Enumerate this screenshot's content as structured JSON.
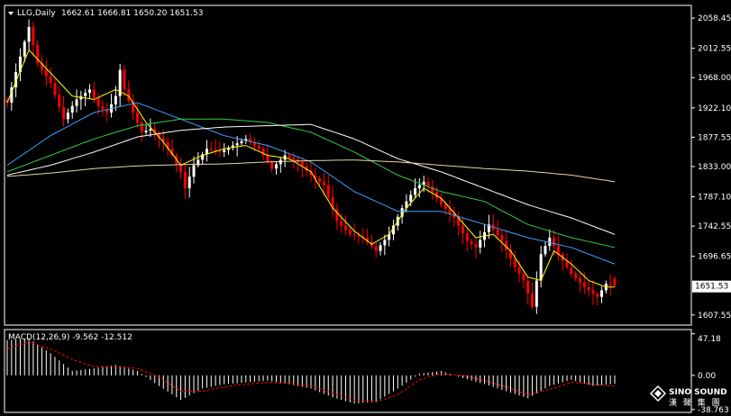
{
  "header": {
    "symbol": "LLG,Daily",
    "ohlc": "1662.61 1666.81 1650.20 1651.53"
  },
  "macd_header": "MACD(12,26,9) -9.562 -12.512",
  "current_price_label": "1651.53",
  "watermark": {
    "title": "SINO SOUND",
    "subtitle": "漢 聲 集 團"
  },
  "colors": {
    "background": "#000000",
    "axis": "#ffffff",
    "bull": "#ffffff",
    "bear": "#ff0000",
    "ma_fast": "#ffff00",
    "ma_mid": "#3aa0ff",
    "ma_slow": "#2ecc40",
    "ma_white": "#ffffff",
    "ma_tan": "#e8d8a0",
    "macd_hist": "#ffffff",
    "macd_signal": "#ff0000"
  },
  "chart_data": [
    {
      "type": "candlestick",
      "title": "LLG,Daily",
      "y_ticks": [
        2058.45,
        2012.55,
        1968.0,
        1922.1,
        1877.55,
        1833.0,
        1787.1,
        1742.55,
        1696.65,
        1651.53,
        1607.55
      ],
      "ylim": [
        1595,
        2075
      ],
      "last": {
        "open": 1662.61,
        "high": 1666.81,
        "low": 1650.2,
        "close": 1651.53
      },
      "close_path": [
        [
          0,
          1930
        ],
        [
          3,
          2000
        ],
        [
          5,
          2045
        ],
        [
          7,
          1990
        ],
        [
          10,
          1960
        ],
        [
          13,
          1905
        ],
        [
          16,
          1935
        ],
        [
          19,
          1950
        ],
        [
          21,
          1925
        ],
        [
          23,
          1915
        ],
        [
          25,
          1940
        ],
        [
          26,
          1980
        ],
        [
          27,
          1950
        ],
        [
          29,
          1915
        ],
        [
          31,
          1885
        ],
        [
          33,
          1890
        ],
        [
          36,
          1870
        ],
        [
          38,
          1850
        ],
        [
          40,
          1825
        ],
        [
          41,
          1800
        ],
        [
          43,
          1835
        ],
        [
          46,
          1860
        ],
        [
          49,
          1855
        ],
        [
          52,
          1865
        ],
        [
          55,
          1875
        ],
        [
          58,
          1860
        ],
        [
          61,
          1830
        ],
        [
          64,
          1850
        ],
        [
          67,
          1840
        ],
        [
          70,
          1820
        ],
        [
          73,
          1805
        ],
        [
          76,
          1750
        ],
        [
          79,
          1730
        ],
        [
          82,
          1725
        ],
        [
          85,
          1705
        ],
        [
          88,
          1730
        ],
        [
          91,
          1770
        ],
        [
          94,
          1800
        ],
        [
          96,
          1810
        ],
        [
          98,
          1795
        ],
        [
          100,
          1775
        ],
        [
          103,
          1755
        ],
        [
          106,
          1720
        ],
        [
          108,
          1710
        ],
        [
          111,
          1745
        ],
        [
          114,
          1720
        ],
        [
          117,
          1680
        ],
        [
          119,
          1660
        ],
        [
          121,
          1620
        ],
        [
          123,
          1700
        ],
        [
          125,
          1725
        ],
        [
          127,
          1700
        ],
        [
          130,
          1670
        ],
        [
          133,
          1650
        ],
        [
          136,
          1635
        ],
        [
          138,
          1655
        ],
        [
          140,
          1651.53
        ]
      ],
      "moving_averages": [
        {
          "color": "#ffff00",
          "values": [
            [
              0,
              1930
            ],
            [
              5,
              2010
            ],
            [
              10,
              1975
            ],
            [
              15,
              1940
            ],
            [
              20,
              1935
            ],
            [
              25,
              1950
            ],
            [
              28,
              1940
            ],
            [
              32,
              1900
            ],
            [
              36,
              1870
            ],
            [
              40,
              1835
            ],
            [
              45,
              1850
            ],
            [
              50,
              1860
            ],
            [
              55,
              1865
            ],
            [
              60,
              1850
            ],
            [
              65,
              1845
            ],
            [
              70,
              1825
            ],
            [
              75,
              1770
            ],
            [
              80,
              1735
            ],
            [
              84,
              1715
            ],
            [
              88,
              1730
            ],
            [
              92,
              1770
            ],
            [
              96,
              1800
            ],
            [
              100,
              1785
            ],
            [
              104,
              1755
            ],
            [
              108,
              1725
            ],
            [
              112,
              1730
            ],
            [
              116,
              1705
            ],
            [
              120,
              1665
            ],
            [
              123,
              1660
            ],
            [
              126,
              1705
            ],
            [
              130,
              1685
            ],
            [
              134,
              1660
            ],
            [
              138,
              1650
            ],
            [
              140,
              1650
            ]
          ]
        },
        {
          "color": "#3aa0ff",
          "values": [
            [
              0,
              1835
            ],
            [
              10,
              1880
            ],
            [
              20,
              1915
            ],
            [
              30,
              1930
            ],
            [
              40,
              1905
            ],
            [
              50,
              1880
            ],
            [
              60,
              1865
            ],
            [
              70,
              1840
            ],
            [
              80,
              1795
            ],
            [
              90,
              1765
            ],
            [
              100,
              1765
            ],
            [
              110,
              1745
            ],
            [
              120,
              1725
            ],
            [
              130,
              1710
            ],
            [
              140,
              1685
            ]
          ]
        },
        {
          "color": "#2ecc40",
          "values": [
            [
              0,
              1825
            ],
            [
              10,
              1850
            ],
            [
              20,
              1875
            ],
            [
              30,
              1895
            ],
            [
              40,
              1905
            ],
            [
              50,
              1905
            ],
            [
              60,
              1900
            ],
            [
              70,
              1885
            ],
            [
              80,
              1855
            ],
            [
              90,
              1820
            ],
            [
              100,
              1795
            ],
            [
              110,
              1780
            ],
            [
              120,
              1745
            ],
            [
              130,
              1725
            ],
            [
              140,
              1710
            ]
          ]
        },
        {
          "color": "#ffffff",
          "values": [
            [
              0,
              1820
            ],
            [
              10,
              1835
            ],
            [
              20,
              1855
            ],
            [
              30,
              1878
            ],
            [
              40,
              1888
            ],
            [
              50,
              1893
            ],
            [
              60,
              1895
            ],
            [
              70,
              1897
            ],
            [
              80,
              1875
            ],
            [
              90,
              1845
            ],
            [
              100,
              1825
            ],
            [
              110,
              1800
            ],
            [
              120,
              1775
            ],
            [
              130,
              1755
            ],
            [
              140,
              1730
            ]
          ]
        },
        {
          "color": "#e8d8a0",
          "values": [
            [
              0,
              1818
            ],
            [
              10,
              1823
            ],
            [
              20,
              1830
            ],
            [
              30,
              1834
            ],
            [
              40,
              1836
            ],
            [
              50,
              1837
            ],
            [
              60,
              1840
            ],
            [
              70,
              1842
            ],
            [
              80,
              1843
            ],
            [
              90,
              1840
            ],
            [
              100,
              1835
            ],
            [
              110,
              1830
            ],
            [
              120,
              1826
            ],
            [
              130,
              1820
            ],
            [
              140,
              1810
            ]
          ]
        }
      ]
    },
    {
      "type": "bar",
      "title": "MACD(12,26,9)",
      "macd": -9.562,
      "signal": -12.512,
      "y_ticks": [
        47.18,
        0.0,
        -38.763
      ],
      "ylim": [
        -40,
        50
      ],
      "histogram_path": [
        [
          0,
          40
        ],
        [
          5,
          42
        ],
        [
          10,
          25
        ],
        [
          15,
          5
        ],
        [
          20,
          8
        ],
        [
          25,
          12
        ],
        [
          30,
          5
        ],
        [
          35,
          -12
        ],
        [
          40,
          -28
        ],
        [
          45,
          -15
        ],
        [
          50,
          -10
        ],
        [
          55,
          -8
        ],
        [
          60,
          -6
        ],
        [
          65,
          -10
        ],
        [
          70,
          -15
        ],
        [
          75,
          -25
        ],
        [
          80,
          -32
        ],
        [
          85,
          -30
        ],
        [
          90,
          -15
        ],
        [
          95,
          2
        ],
        [
          100,
          5
        ],
        [
          105,
          -3
        ],
        [
          110,
          -10
        ],
        [
          115,
          -18
        ],
        [
          120,
          -26
        ],
        [
          125,
          -12
        ],
        [
          130,
          -5
        ],
        [
          135,
          -12
        ],
        [
          140,
          -9.562
        ]
      ],
      "signal_path": [
        [
          0,
          30
        ],
        [
          5,
          38
        ],
        [
          10,
          30
        ],
        [
          15,
          18
        ],
        [
          20,
          10
        ],
        [
          25,
          10
        ],
        [
          30,
          8
        ],
        [
          35,
          -2
        ],
        [
          40,
          -18
        ],
        [
          45,
          -18
        ],
        [
          50,
          -13
        ],
        [
          55,
          -10
        ],
        [
          60,
          -8
        ],
        [
          65,
          -9
        ],
        [
          70,
          -12
        ],
        [
          75,
          -20
        ],
        [
          80,
          -28
        ],
        [
          85,
          -30
        ],
        [
          90,
          -22
        ],
        [
          95,
          -5
        ],
        [
          100,
          2
        ],
        [
          105,
          0
        ],
        [
          110,
          -6
        ],
        [
          115,
          -13
        ],
        [
          120,
          -22
        ],
        [
          125,
          -16
        ],
        [
          130,
          -8
        ],
        [
          135,
          -10
        ],
        [
          140,
          -12.512
        ]
      ]
    }
  ]
}
